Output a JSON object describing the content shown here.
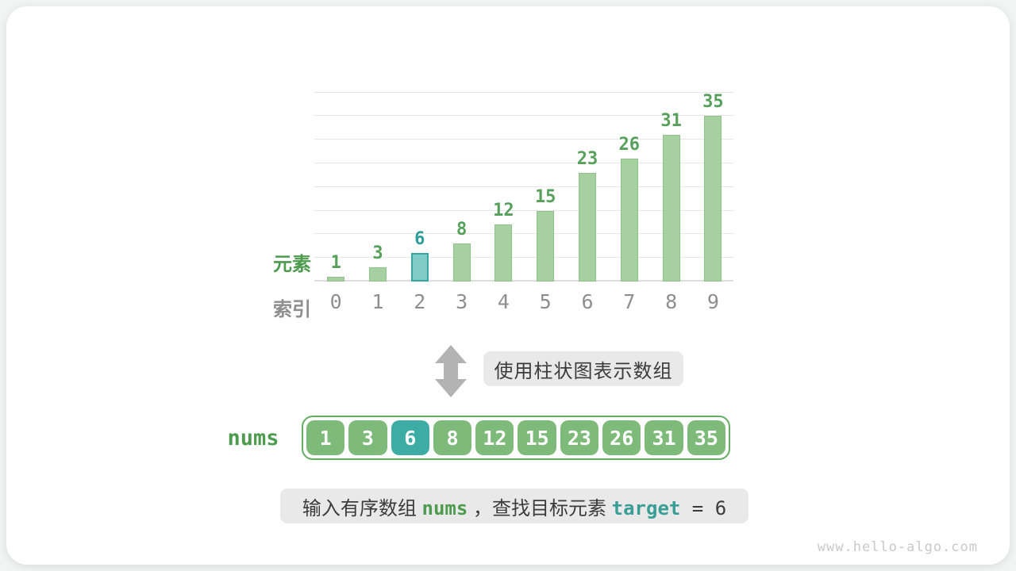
{
  "page": {
    "watermark": "www.hello-algo.com"
  },
  "chart_data": {
    "type": "bar",
    "categories": [
      "0",
      "1",
      "2",
      "3",
      "4",
      "5",
      "6",
      "7",
      "8",
      "9"
    ],
    "values": [
      1,
      3,
      6,
      8,
      12,
      15,
      23,
      26,
      31,
      35
    ],
    "highlight_index": 2,
    "title": "",
    "xlabel": "索引",
    "ylabel": "元素",
    "ylim": [
      0,
      40
    ],
    "gridline_step": 5,
    "grid": "on",
    "legend": "none"
  },
  "transform": {
    "arrow_icon": "double-vertical-arrow-icon",
    "caption": "使用柱状图表示数组"
  },
  "nums_array": {
    "label": "nums",
    "values": [
      "1",
      "3",
      "6",
      "8",
      "12",
      "15",
      "23",
      "26",
      "31",
      "35"
    ],
    "highlight_index": 2
  },
  "input_statement": {
    "segments": [
      {
        "text": "输入有序数组 ",
        "style": "plain"
      },
      {
        "text": "nums",
        "style": "code-green"
      },
      {
        "text": " ，查找目标元素 ",
        "style": "plain"
      },
      {
        "text": "target",
        "style": "code-teal"
      },
      {
        "text": " = 6",
        "style": "code-plain"
      }
    ]
  },
  "colors": {
    "bar_fill": "#a7d0a0",
    "bar_border": "#8fc28b",
    "bar_highlight_fill": "#7fcbc5",
    "bar_highlight_border": "#38a7a1",
    "value_label_green": "#57a05c",
    "value_label_teal": "#2f9e98",
    "cell_fill": "#7eba7a",
    "cell_highlight_fill": "#3caca5",
    "green_text": "#4e9b4f",
    "teal_text": "#3a9e96",
    "gray_text": "#8e8e8e",
    "arrow_gray": "#b3b3b3",
    "box_bg": "#e9e9e9"
  }
}
